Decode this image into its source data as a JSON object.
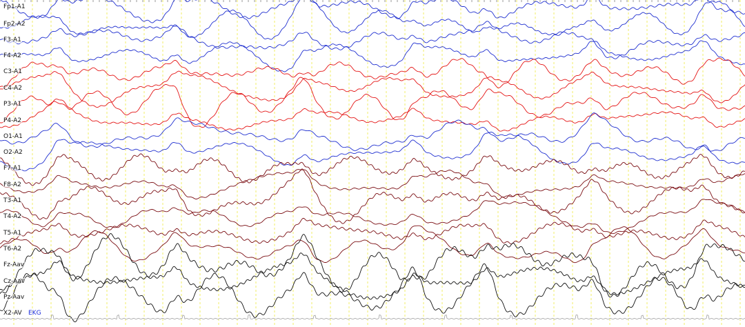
{
  "viewer": {
    "grid_color": "#e9e400",
    "background": "#ffffff"
  },
  "channels": [
    {
      "label": "Fp1-A1",
      "color": "#1f2fd0"
    },
    {
      "label": "Fp2-A2",
      "color": "#1f2fd0"
    },
    {
      "label": "F3-A1",
      "color": "#1f2fd0"
    },
    {
      "label": "F4-A2",
      "color": "#1f2fd0"
    },
    {
      "label": "C3-A1",
      "color": "#e41414"
    },
    {
      "label": "C4-A2",
      "color": "#e41414"
    },
    {
      "label": "P3-A1",
      "color": "#e41414"
    },
    {
      "label": "P4-A2",
      "color": "#e41414"
    },
    {
      "label": "O1-A1",
      "color": "#1f2fd0"
    },
    {
      "label": "O2-A2",
      "color": "#1f2fd0"
    },
    {
      "label": "F7-A1",
      "color": "#7a0d12"
    },
    {
      "label": "F8-A2",
      "color": "#7a0d12"
    },
    {
      "label": "T3-A1",
      "color": "#7a0d12"
    },
    {
      "label": "T4-A2",
      "color": "#7a0d12"
    },
    {
      "label": "T5-A1",
      "color": "#7a0d12"
    },
    {
      "label": "T6-A2",
      "color": "#7a0d12"
    },
    {
      "label": "Fz-Aav",
      "color": "#111111"
    },
    {
      "label": "Cz-Aav",
      "color": "#111111"
    },
    {
      "label": "Pz-Aav",
      "color": "#111111"
    },
    {
      "label": "X2-AV",
      "color": "#1f2fd0"
    }
  ],
  "ekg": {
    "label": "EKG",
    "color": "#1a2bdc",
    "trace_color": "#a0a0a0"
  }
}
